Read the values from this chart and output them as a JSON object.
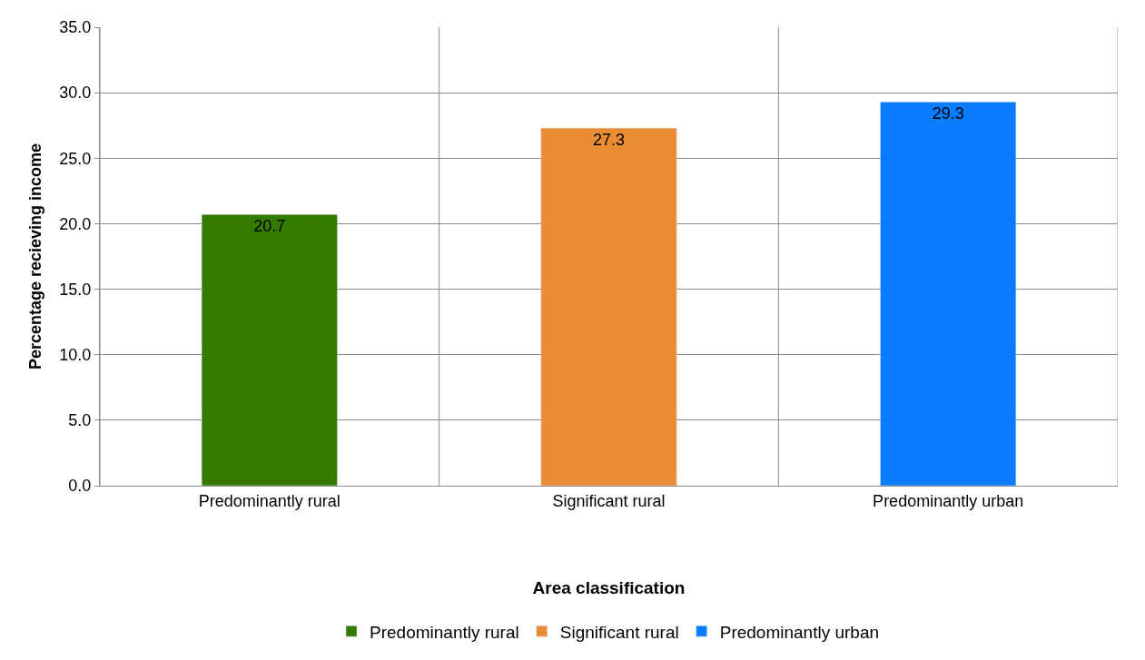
{
  "chart_data": {
    "type": "bar",
    "xlabel": "Area classification",
    "ylabel": "Percentage recieving income",
    "categories": [
      "Predominantly rural",
      "Significant rural",
      "Predominantly urban"
    ],
    "series": [
      {
        "name": "Predominantly rural",
        "color": "#357a00",
        "values": [
          20.7,
          null,
          null
        ]
      },
      {
        "name": "Significant rural",
        "color": "#ea8c33",
        "values": [
          null,
          27.3,
          null
        ]
      },
      {
        "name": "Predominantly urban",
        "color": "#0a7cff",
        "values": [
          null,
          null,
          29.3
        ]
      }
    ],
    "ylim": [
      0,
      35
    ],
    "yticks": [
      {
        "value": 0,
        "label": "0.0"
      },
      {
        "value": 5,
        "label": "5.0"
      },
      {
        "value": 10,
        "label": "10.0"
      },
      {
        "value": 15,
        "label": "15.0"
      },
      {
        "value": 20,
        "label": "20.0"
      },
      {
        "value": 25,
        "label": "25.0"
      },
      {
        "value": 30,
        "label": "30.0"
      },
      {
        "value": 35,
        "label": "35.0"
      }
    ],
    "grid": true,
    "legend": "bottom",
    "data_labels": true
  }
}
